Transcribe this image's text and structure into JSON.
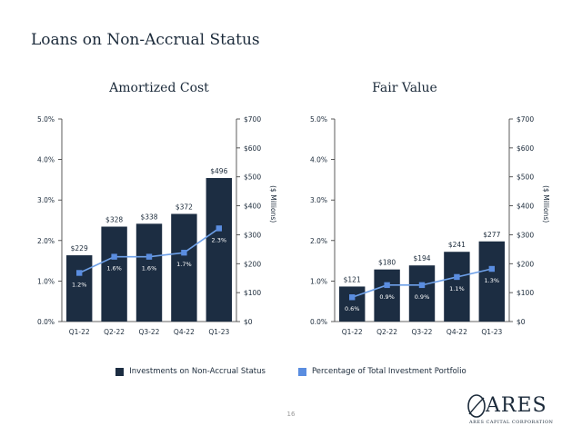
{
  "page": {
    "title": "Loans on Non-Accrual Status",
    "page_number": "16",
    "logo_text": "ARES",
    "logo_subtext": "ARES CAPITAL CORPORATION"
  },
  "colors": {
    "bar": "#1c2d42",
    "line": "#6ea0e8",
    "marker": "#5a8de0",
    "axis": "#333333",
    "text": "#1b2a3a"
  },
  "legend": {
    "bars_label": "Investments on Non-Accrual Status",
    "line_label": "Percentage of Total Investment Portfolio"
  },
  "chart_data": [
    {
      "type": "bar",
      "title": "Amortized Cost",
      "categories": [
        "Q1-22",
        "Q2-22",
        "Q3-22",
        "Q4-22",
        "Q1-23"
      ],
      "series": [
        {
          "name": "Investments on Non-Accrual Status",
          "type": "bar",
          "axis": "right",
          "values": [
            229,
            328,
            338,
            372,
            496
          ],
          "labels": [
            "$229",
            "$328",
            "$338",
            "$372",
            "$496"
          ]
        },
        {
          "name": "Percentage of Total Investment Portfolio",
          "type": "line",
          "axis": "left",
          "values": [
            1.2,
            1.6,
            1.6,
            1.7,
            2.3
          ],
          "labels": [
            "1.2%",
            "1.6%",
            "1.6%",
            "1.7%",
            "2.3%"
          ]
        }
      ],
      "left_axis": {
        "range": [
          0,
          5
        ],
        "ticks": [
          "0.0%",
          "1.0%",
          "2.0%",
          "3.0%",
          "4.0%",
          "5.0%"
        ]
      },
      "right_axis": {
        "range": [
          0,
          700
        ],
        "ticks": [
          "$0",
          "$100",
          "$200",
          "$300",
          "$400",
          "$500",
          "$600",
          "$700"
        ],
        "label": "($ Millions)"
      }
    },
    {
      "type": "bar",
      "title": "Fair Value",
      "categories": [
        "Q1-22",
        "Q2-22",
        "Q3-22",
        "Q4-22",
        "Q1-23"
      ],
      "series": [
        {
          "name": "Investments on Non-Accrual Status",
          "type": "bar",
          "axis": "right",
          "values": [
            121,
            180,
            194,
            241,
            277
          ],
          "labels": [
            "$121",
            "$180",
            "$194",
            "$241",
            "$277"
          ]
        },
        {
          "name": "Percentage of Total Investment Portfolio",
          "type": "line",
          "axis": "left",
          "values": [
            0.6,
            0.9,
            0.9,
            1.1,
            1.3
          ],
          "labels": [
            "0.6%",
            "0.9%",
            "0.9%",
            "1.1%",
            "1.3%"
          ]
        }
      ],
      "left_axis": {
        "range": [
          0,
          5
        ],
        "ticks": [
          "0.0%",
          "1.0%",
          "2.0%",
          "3.0%",
          "4.0%",
          "5.0%"
        ]
      },
      "right_axis": {
        "range": [
          0,
          700
        ],
        "ticks": [
          "$0",
          "$100",
          "$200",
          "$300",
          "$400",
          "$500",
          "$600",
          "$700"
        ],
        "label": "($ Millions)"
      }
    }
  ]
}
